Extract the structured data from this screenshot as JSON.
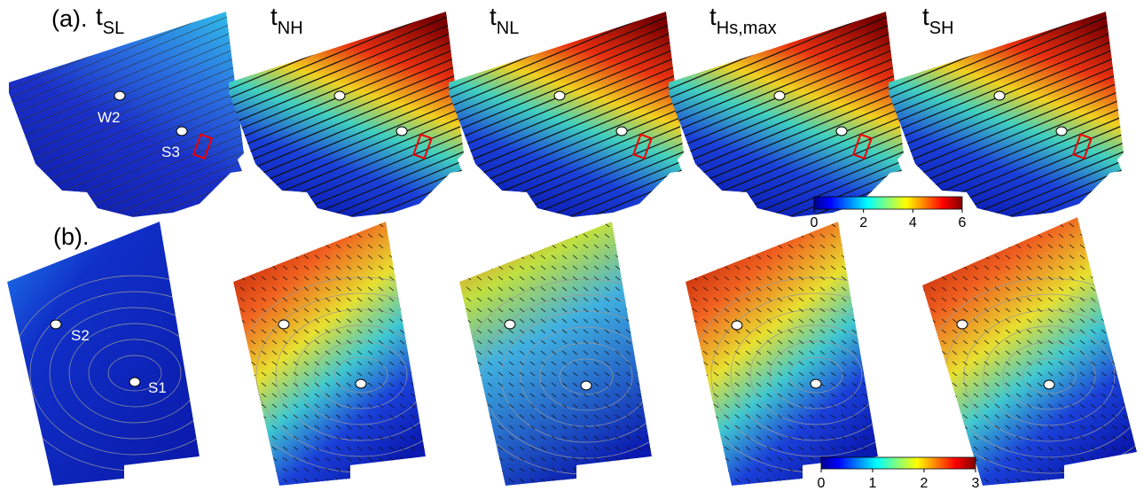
{
  "row_a": {
    "label": "(a).",
    "panels": [
      {
        "title": {
          "base": "t",
          "sub": "SL"
        },
        "stations": [
          "W2",
          "S3"
        ]
      },
      {
        "title": {
          "base": "t",
          "sub": "NH"
        }
      },
      {
        "title": {
          "base": "t",
          "sub": "NL"
        }
      },
      {
        "title": {
          "base": "t",
          "sub": "Hs,max"
        }
      },
      {
        "title": {
          "base": "t",
          "sub": "SH"
        }
      }
    ],
    "colorbar": {
      "lim": [
        0,
        6
      ],
      "ticks": [
        0,
        2,
        4,
        6
      ]
    }
  },
  "row_b": {
    "label": "(b).",
    "stations": [
      "S2",
      "S1"
    ],
    "colorbar": {
      "lim": [
        0,
        3
      ],
      "ticks": [
        0,
        1,
        2,
        3
      ]
    }
  }
}
